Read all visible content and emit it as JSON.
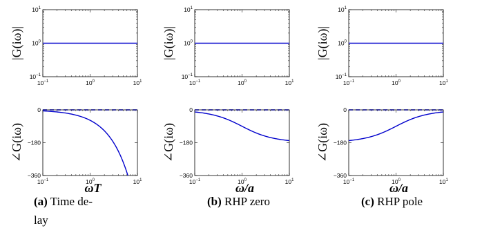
{
  "chart_data": [
    {
      "type": "line",
      "panel": "magnitude",
      "column": "a",
      "ylabel": "|G(iω)|",
      "xlabel": "",
      "xscale": "log",
      "yscale": "log",
      "xlim": [
        0.1,
        10
      ],
      "ylim": [
        0.1,
        10
      ],
      "xticks": [
        "10^-1",
        "10^0",
        "10^1"
      ],
      "yticks": [
        "10^-1",
        "10^0",
        "10^1"
      ],
      "series": [
        {
          "x": [
            0.1,
            0.3,
            1,
            3,
            10
          ],
          "y": [
            1,
            1,
            1,
            1,
            1
          ],
          "color": "#0000cc"
        }
      ]
    },
    {
      "type": "line",
      "panel": "magnitude",
      "column": "b",
      "ylabel": "|G(iω)|",
      "xlabel": "",
      "xscale": "log",
      "yscale": "log",
      "xlim": [
        0.1,
        10
      ],
      "ylim": [
        0.1,
        10
      ],
      "xticks": [
        "10^-1",
        "10^0",
        "10^1"
      ],
      "yticks": [
        "10^-1",
        "10^0",
        "10^1"
      ],
      "series": [
        {
          "x": [
            0.1,
            0.3,
            1,
            3,
            10
          ],
          "y": [
            1,
            1,
            1,
            1,
            1
          ],
          "color": "#0000cc"
        }
      ]
    },
    {
      "type": "line",
      "panel": "magnitude",
      "column": "c",
      "ylabel": "|G(iω)|",
      "xlabel": "",
      "xscale": "log",
      "yscale": "log",
      "xlim": [
        0.1,
        10
      ],
      "ylim": [
        0.1,
        10
      ],
      "xticks": [
        "10^-1",
        "10^0",
        "10^1"
      ],
      "yticks": [
        "10^-1",
        "10^0",
        "10^1"
      ],
      "series": [
        {
          "x": [
            0.1,
            0.3,
            1,
            3,
            10
          ],
          "y": [
            1,
            1,
            1,
            1,
            1
          ],
          "color": "#0000cc"
        }
      ]
    },
    {
      "type": "line",
      "panel": "phase",
      "column": "a",
      "ylabel": "∠G(iω)",
      "xlabel": "ωT",
      "xscale": "log",
      "xlim": [
        0.1,
        10
      ],
      "ylim": [
        -360,
        0
      ],
      "xticks": [
        "10^-1",
        "10^0",
        "10^1"
      ],
      "yticks": [
        "0",
        "−180",
        "−360"
      ],
      "reference_line": {
        "y": 0,
        "style": "dashed"
      },
      "series": [
        {
          "x": [
            0.1,
            0.158,
            0.251,
            0.398,
            0.631,
            1,
            1.585,
            2.512,
            3.162,
            3.981,
            5.012,
            6.283
          ],
          "y": [
            -5.7,
            -9.1,
            -14.4,
            -22.8,
            -36.2,
            -57.3,
            -90.8,
            -143.9,
            -181.2,
            -228.1,
            -287.2,
            -360
          ],
          "color": "#0000cc"
        }
      ]
    },
    {
      "type": "line",
      "panel": "phase",
      "column": "b",
      "ylabel": "∠G(iω)",
      "xlabel": "ω/a",
      "xscale": "log",
      "xlim": [
        0.1,
        10
      ],
      "ylim": [
        -360,
        0
      ],
      "xticks": [
        "10^-1",
        "10^0",
        "10^1"
      ],
      "yticks": [
        "0",
        "−180",
        "−360"
      ],
      "reference_line": {
        "y": 0,
        "style": "dashed"
      },
      "series": [
        {
          "x": [
            0.1,
            0.158,
            0.251,
            0.398,
            0.631,
            1,
            1.585,
            2.512,
            3.981,
            6.31,
            10
          ],
          "y": [
            -11.4,
            -18,
            -28.2,
            -43.4,
            -64.5,
            -90,
            -115.5,
            -136.6,
            -151.8,
            -162,
            -168.6
          ],
          "color": "#0000cc"
        }
      ]
    },
    {
      "type": "line",
      "panel": "phase",
      "column": "c",
      "ylabel": "∠G(iω)",
      "xlabel": "ω/a",
      "xscale": "log",
      "xlim": [
        0.1,
        10
      ],
      "ylim": [
        -360,
        0
      ],
      "xticks": [
        "10^-1",
        "10^0",
        "10^1"
      ],
      "yticks": [
        "0",
        "−180",
        "−360"
      ],
      "reference_line": {
        "y": 0,
        "style": "dashed"
      },
      "series": [
        {
          "x": [
            0.1,
            0.158,
            0.251,
            0.398,
            0.631,
            1,
            1.585,
            2.512,
            3.981,
            6.31,
            10
          ],
          "y": [
            -168.6,
            -162,
            -151.8,
            -136.6,
            -115.5,
            -90,
            -64.5,
            -43.4,
            -28.2,
            -18,
            -11.4
          ],
          "color": "#0000cc"
        }
      ]
    }
  ],
  "captions": [
    {
      "label": "(a)",
      "text_line1": "Time de-",
      "text_line2": "lay"
    },
    {
      "label": "(b)",
      "text_line1": "RHP zero",
      "text_line2": ""
    },
    {
      "label": "(c)",
      "text_line1": "RHP pole",
      "text_line2": ""
    }
  ],
  "colors": {
    "curve": "#0000cc",
    "axes": "#000000",
    "reference": "#000080"
  }
}
